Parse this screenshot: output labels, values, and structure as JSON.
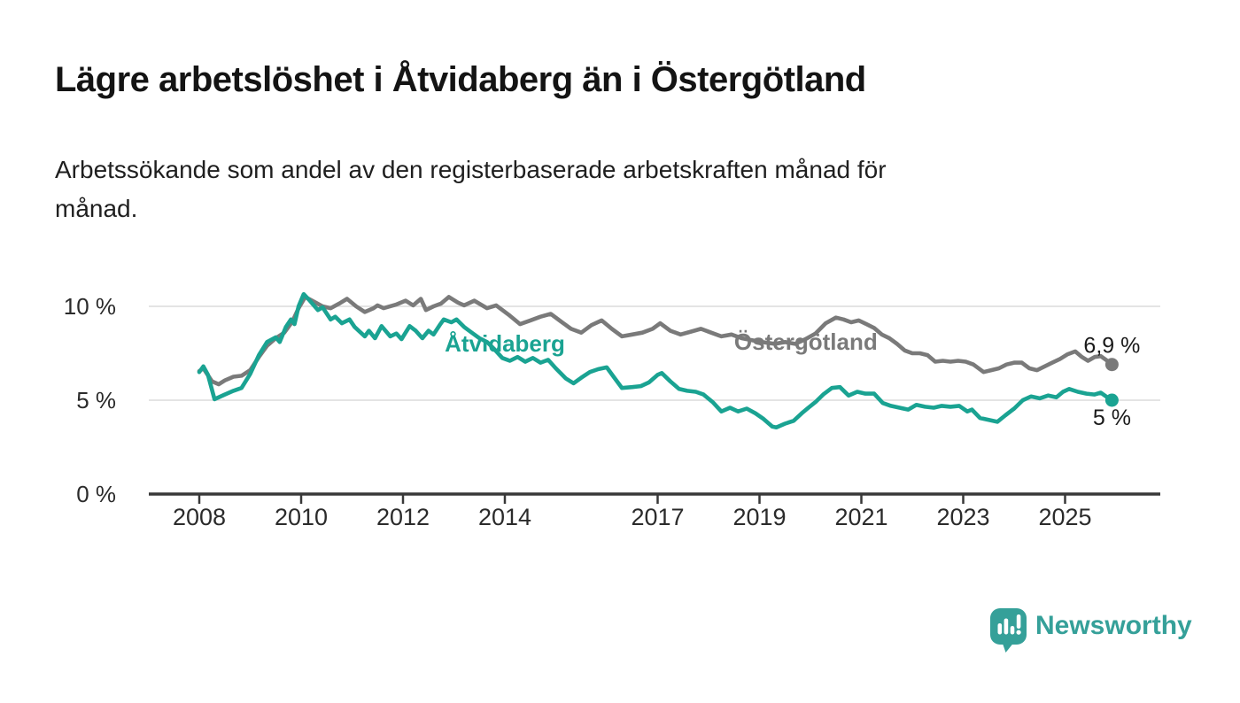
{
  "chart_data": {
    "type": "line",
    "title": "Lägre arbetslöshet i Åtvidaberg än i Östergötland",
    "subtitle_lines": [
      "Arbetssökande som andel av den registerbaserade arbetskraften månad för",
      "månad."
    ],
    "grid": "horizontal",
    "legend_position": "inline-labels",
    "x_axis": {
      "range": [
        2007.0,
        2026.9
      ],
      "tick_values": [
        2008,
        2010,
        2012,
        2014,
        2017,
        2019,
        2021,
        2023,
        2025
      ],
      "tick_labels": [
        "2008",
        "2010",
        "2012",
        "2014",
        "2017",
        "2019",
        "2021",
        "2023",
        "2025"
      ]
    },
    "y_axis": {
      "unit": "%",
      "range": [
        0,
        11.2
      ],
      "tick_values": [
        0,
        5,
        10
      ],
      "tick_labels": [
        "0 %",
        "5 %",
        "10 %"
      ]
    },
    "series": [
      {
        "id": "ostergotland",
        "name": "Östergötland",
        "color": "#7a7a7a",
        "end_value": 6.9,
        "end_label": "6,9 %",
        "end_label_position": "above",
        "label_anchor": {
          "x": 2019.91,
          "y": 8.11
        },
        "points": [
          [
            2008.0,
            6.55
          ],
          [
            2008.08,
            6.7
          ],
          [
            2008.25,
            6.0
          ],
          [
            2008.38,
            5.85
          ],
          [
            2008.5,
            6.05
          ],
          [
            2008.67,
            6.25
          ],
          [
            2008.83,
            6.3
          ],
          [
            2009.0,
            6.6
          ],
          [
            2009.17,
            7.3
          ],
          [
            2009.33,
            7.9
          ],
          [
            2009.5,
            8.3
          ],
          [
            2009.67,
            8.6
          ],
          [
            2009.83,
            9.2
          ],
          [
            2009.95,
            9.9
          ],
          [
            2010.08,
            10.5
          ],
          [
            2010.25,
            10.25
          ],
          [
            2010.42,
            10.0
          ],
          [
            2010.58,
            9.9
          ],
          [
            2010.75,
            10.15
          ],
          [
            2010.9,
            10.4
          ],
          [
            2011.08,
            10.0
          ],
          [
            2011.25,
            9.7
          ],
          [
            2011.42,
            9.9
          ],
          [
            2011.5,
            10.05
          ],
          [
            2011.62,
            9.9
          ],
          [
            2011.87,
            10.1
          ],
          [
            2012.05,
            10.3
          ],
          [
            2012.2,
            10.05
          ],
          [
            2012.35,
            10.4
          ],
          [
            2012.45,
            9.8
          ],
          [
            2012.6,
            10.0
          ],
          [
            2012.75,
            10.15
          ],
          [
            2012.9,
            10.5
          ],
          [
            2013.08,
            10.2
          ],
          [
            2013.2,
            10.05
          ],
          [
            2013.4,
            10.3
          ],
          [
            2013.65,
            9.9
          ],
          [
            2013.83,
            10.05
          ],
          [
            2014.1,
            9.5
          ],
          [
            2014.3,
            9.05
          ],
          [
            2014.5,
            9.25
          ],
          [
            2014.7,
            9.45
          ],
          [
            2014.9,
            9.6
          ],
          [
            2015.1,
            9.2
          ],
          [
            2015.3,
            8.8
          ],
          [
            2015.5,
            8.6
          ],
          [
            2015.7,
            9.0
          ],
          [
            2015.9,
            9.25
          ],
          [
            2016.1,
            8.8
          ],
          [
            2016.3,
            8.4
          ],
          [
            2016.5,
            8.5
          ],
          [
            2016.7,
            8.6
          ],
          [
            2016.9,
            8.8
          ],
          [
            2017.05,
            9.1
          ],
          [
            2017.25,
            8.7
          ],
          [
            2017.45,
            8.5
          ],
          [
            2017.65,
            8.65
          ],
          [
            2017.85,
            8.8
          ],
          [
            2018.05,
            8.6
          ],
          [
            2018.25,
            8.4
          ],
          [
            2018.45,
            8.5
          ],
          [
            2018.65,
            8.3
          ],
          [
            2018.85,
            8.2
          ],
          [
            2019.05,
            8.1
          ],
          [
            2019.3,
            8.0
          ],
          [
            2019.5,
            8.1
          ],
          [
            2019.7,
            8.0
          ],
          [
            2019.9,
            8.25
          ],
          [
            2020.1,
            8.55
          ],
          [
            2020.3,
            9.1
          ],
          [
            2020.5,
            9.4
          ],
          [
            2020.65,
            9.3
          ],
          [
            2020.8,
            9.15
          ],
          [
            2020.95,
            9.25
          ],
          [
            2021.1,
            9.05
          ],
          [
            2021.25,
            8.85
          ],
          [
            2021.4,
            8.5
          ],
          [
            2021.55,
            8.3
          ],
          [
            2021.7,
            8.0
          ],
          [
            2021.85,
            7.65
          ],
          [
            2022.0,
            7.5
          ],
          [
            2022.15,
            7.5
          ],
          [
            2022.3,
            7.4
          ],
          [
            2022.45,
            7.05
          ],
          [
            2022.6,
            7.1
          ],
          [
            2022.75,
            7.05
          ],
          [
            2022.9,
            7.1
          ],
          [
            2023.05,
            7.05
          ],
          [
            2023.2,
            6.9
          ],
          [
            2023.4,
            6.5
          ],
          [
            2023.55,
            6.6
          ],
          [
            2023.7,
            6.7
          ],
          [
            2023.85,
            6.9
          ],
          [
            2024.0,
            7.0
          ],
          [
            2024.15,
            7.0
          ],
          [
            2024.3,
            6.7
          ],
          [
            2024.45,
            6.6
          ],
          [
            2024.6,
            6.8
          ],
          [
            2024.75,
            7.0
          ],
          [
            2024.9,
            7.2
          ],
          [
            2025.05,
            7.45
          ],
          [
            2025.2,
            7.6
          ],
          [
            2025.33,
            7.3
          ],
          [
            2025.45,
            7.1
          ],
          [
            2025.58,
            7.3
          ],
          [
            2025.7,
            7.35
          ],
          [
            2025.83,
            7.1
          ],
          [
            2025.92,
            6.9
          ]
        ]
      },
      {
        "id": "atvidaberg",
        "name": "Åtvidaberg",
        "color": "#1aa392",
        "end_value": 5.0,
        "end_label": "5 %",
        "end_label_position": "below",
        "label_anchor": {
          "x": 2014.0,
          "y": 8.02
        },
        "points": [
          [
            2008.0,
            6.5
          ],
          [
            2008.08,
            6.8
          ],
          [
            2008.17,
            6.35
          ],
          [
            2008.3,
            5.05
          ],
          [
            2008.5,
            5.3
          ],
          [
            2008.67,
            5.5
          ],
          [
            2008.83,
            5.65
          ],
          [
            2009.0,
            6.4
          ],
          [
            2009.17,
            7.4
          ],
          [
            2009.33,
            8.1
          ],
          [
            2009.5,
            8.35
          ],
          [
            2009.58,
            8.1
          ],
          [
            2009.7,
            8.9
          ],
          [
            2009.8,
            9.3
          ],
          [
            2009.87,
            9.05
          ],
          [
            2009.95,
            10.0
          ],
          [
            2010.05,
            10.65
          ],
          [
            2010.17,
            10.3
          ],
          [
            2010.33,
            9.8
          ],
          [
            2010.42,
            9.95
          ],
          [
            2010.58,
            9.3
          ],
          [
            2010.67,
            9.45
          ],
          [
            2010.8,
            9.1
          ],
          [
            2010.95,
            9.3
          ],
          [
            2011.05,
            8.9
          ],
          [
            2011.25,
            8.4
          ],
          [
            2011.33,
            8.7
          ],
          [
            2011.45,
            8.3
          ],
          [
            2011.58,
            8.95
          ],
          [
            2011.75,
            8.4
          ],
          [
            2011.87,
            8.55
          ],
          [
            2011.97,
            8.25
          ],
          [
            2012.13,
            8.95
          ],
          [
            2012.25,
            8.7
          ],
          [
            2012.38,
            8.3
          ],
          [
            2012.5,
            8.7
          ],
          [
            2012.6,
            8.5
          ],
          [
            2012.72,
            9.0
          ],
          [
            2012.8,
            9.3
          ],
          [
            2012.95,
            9.15
          ],
          [
            2013.05,
            9.3
          ],
          [
            2013.2,
            8.9
          ],
          [
            2013.35,
            8.6
          ],
          [
            2013.5,
            8.3
          ],
          [
            2013.65,
            8.1
          ],
          [
            2013.8,
            7.7
          ],
          [
            2013.95,
            7.25
          ],
          [
            2014.1,
            7.1
          ],
          [
            2014.25,
            7.3
          ],
          [
            2014.4,
            7.05
          ],
          [
            2014.55,
            7.25
          ],
          [
            2014.7,
            7.0
          ],
          [
            2014.85,
            7.15
          ],
          [
            2015.0,
            6.7
          ],
          [
            2015.2,
            6.15
          ],
          [
            2015.35,
            5.9
          ],
          [
            2015.5,
            6.2
          ],
          [
            2015.67,
            6.5
          ],
          [
            2015.83,
            6.65
          ],
          [
            2016.0,
            6.75
          ],
          [
            2016.15,
            6.2
          ],
          [
            2016.3,
            5.65
          ],
          [
            2016.5,
            5.7
          ],
          [
            2016.67,
            5.75
          ],
          [
            2016.83,
            5.95
          ],
          [
            2017.0,
            6.35
          ],
          [
            2017.08,
            6.45
          ],
          [
            2017.25,
            6.0
          ],
          [
            2017.42,
            5.6
          ],
          [
            2017.58,
            5.5
          ],
          [
            2017.75,
            5.45
          ],
          [
            2017.9,
            5.3
          ],
          [
            2018.08,
            4.9
          ],
          [
            2018.25,
            4.4
          ],
          [
            2018.42,
            4.6
          ],
          [
            2018.58,
            4.4
          ],
          [
            2018.75,
            4.55
          ],
          [
            2018.92,
            4.3
          ],
          [
            2019.08,
            4.0
          ],
          [
            2019.25,
            3.6
          ],
          [
            2019.33,
            3.55
          ],
          [
            2019.5,
            3.75
          ],
          [
            2019.67,
            3.9
          ],
          [
            2019.83,
            4.3
          ],
          [
            2019.96,
            4.6
          ],
          [
            2020.1,
            4.9
          ],
          [
            2020.25,
            5.3
          ],
          [
            2020.42,
            5.65
          ],
          [
            2020.58,
            5.7
          ],
          [
            2020.75,
            5.25
          ],
          [
            2020.92,
            5.45
          ],
          [
            2021.08,
            5.35
          ],
          [
            2021.25,
            5.35
          ],
          [
            2021.42,
            4.85
          ],
          [
            2021.58,
            4.7
          ],
          [
            2021.75,
            4.6
          ],
          [
            2021.92,
            4.5
          ],
          [
            2022.08,
            4.75
          ],
          [
            2022.25,
            4.65
          ],
          [
            2022.42,
            4.6
          ],
          [
            2022.58,
            4.7
          ],
          [
            2022.75,
            4.65
          ],
          [
            2022.92,
            4.7
          ],
          [
            2023.08,
            4.4
          ],
          [
            2023.17,
            4.5
          ],
          [
            2023.33,
            4.05
          ],
          [
            2023.5,
            3.95
          ],
          [
            2023.67,
            3.85
          ],
          [
            2023.83,
            4.2
          ],
          [
            2024.0,
            4.55
          ],
          [
            2024.17,
            5.0
          ],
          [
            2024.33,
            5.2
          ],
          [
            2024.5,
            5.1
          ],
          [
            2024.67,
            5.25
          ],
          [
            2024.83,
            5.15
          ],
          [
            2024.96,
            5.45
          ],
          [
            2025.08,
            5.6
          ],
          [
            2025.25,
            5.45
          ],
          [
            2025.42,
            5.35
          ],
          [
            2025.58,
            5.3
          ],
          [
            2025.7,
            5.4
          ],
          [
            2025.83,
            5.15
          ],
          [
            2025.92,
            5.0
          ]
        ]
      }
    ]
  },
  "footer": {
    "brand": "Newsworthy",
    "brand_color": "#35a099",
    "logo_icon": "bar-chart-speech-bubble-icon"
  }
}
